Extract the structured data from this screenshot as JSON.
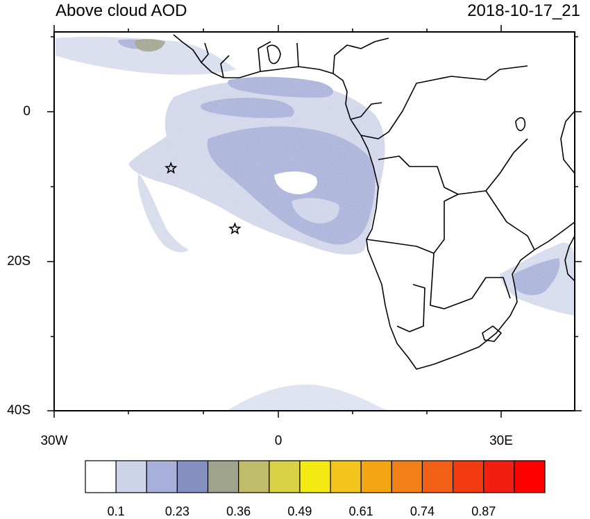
{
  "header": {
    "title": "Above cloud AOD",
    "timestamp": "2018-10-17_21"
  },
  "map": {
    "x_labels": [
      "30W",
      "0",
      "30E"
    ],
    "y_labels": [
      "0",
      "20S",
      "40S"
    ],
    "markers": [
      {
        "name": "star",
        "lon": -14.3,
        "lat": -8.0
      },
      {
        "name": "star",
        "lon": -5.7,
        "lat": -16.0
      }
    ]
  },
  "colorbar": {
    "colors": [
      "#ffffff",
      "#cdd3e8",
      "#a7b0d8",
      "#8490bf",
      "#9fa38c",
      "#bfbc6a",
      "#d9d244",
      "#f2ea12",
      "#f2c41c",
      "#f2a612",
      "#f28018",
      "#f26018",
      "#f23c10",
      "#f21e10",
      "#ff0000"
    ],
    "labels": [
      "0.1",
      "0.23",
      "0.36",
      "0.49",
      "0.61",
      "0.74",
      "0.87"
    ]
  }
}
